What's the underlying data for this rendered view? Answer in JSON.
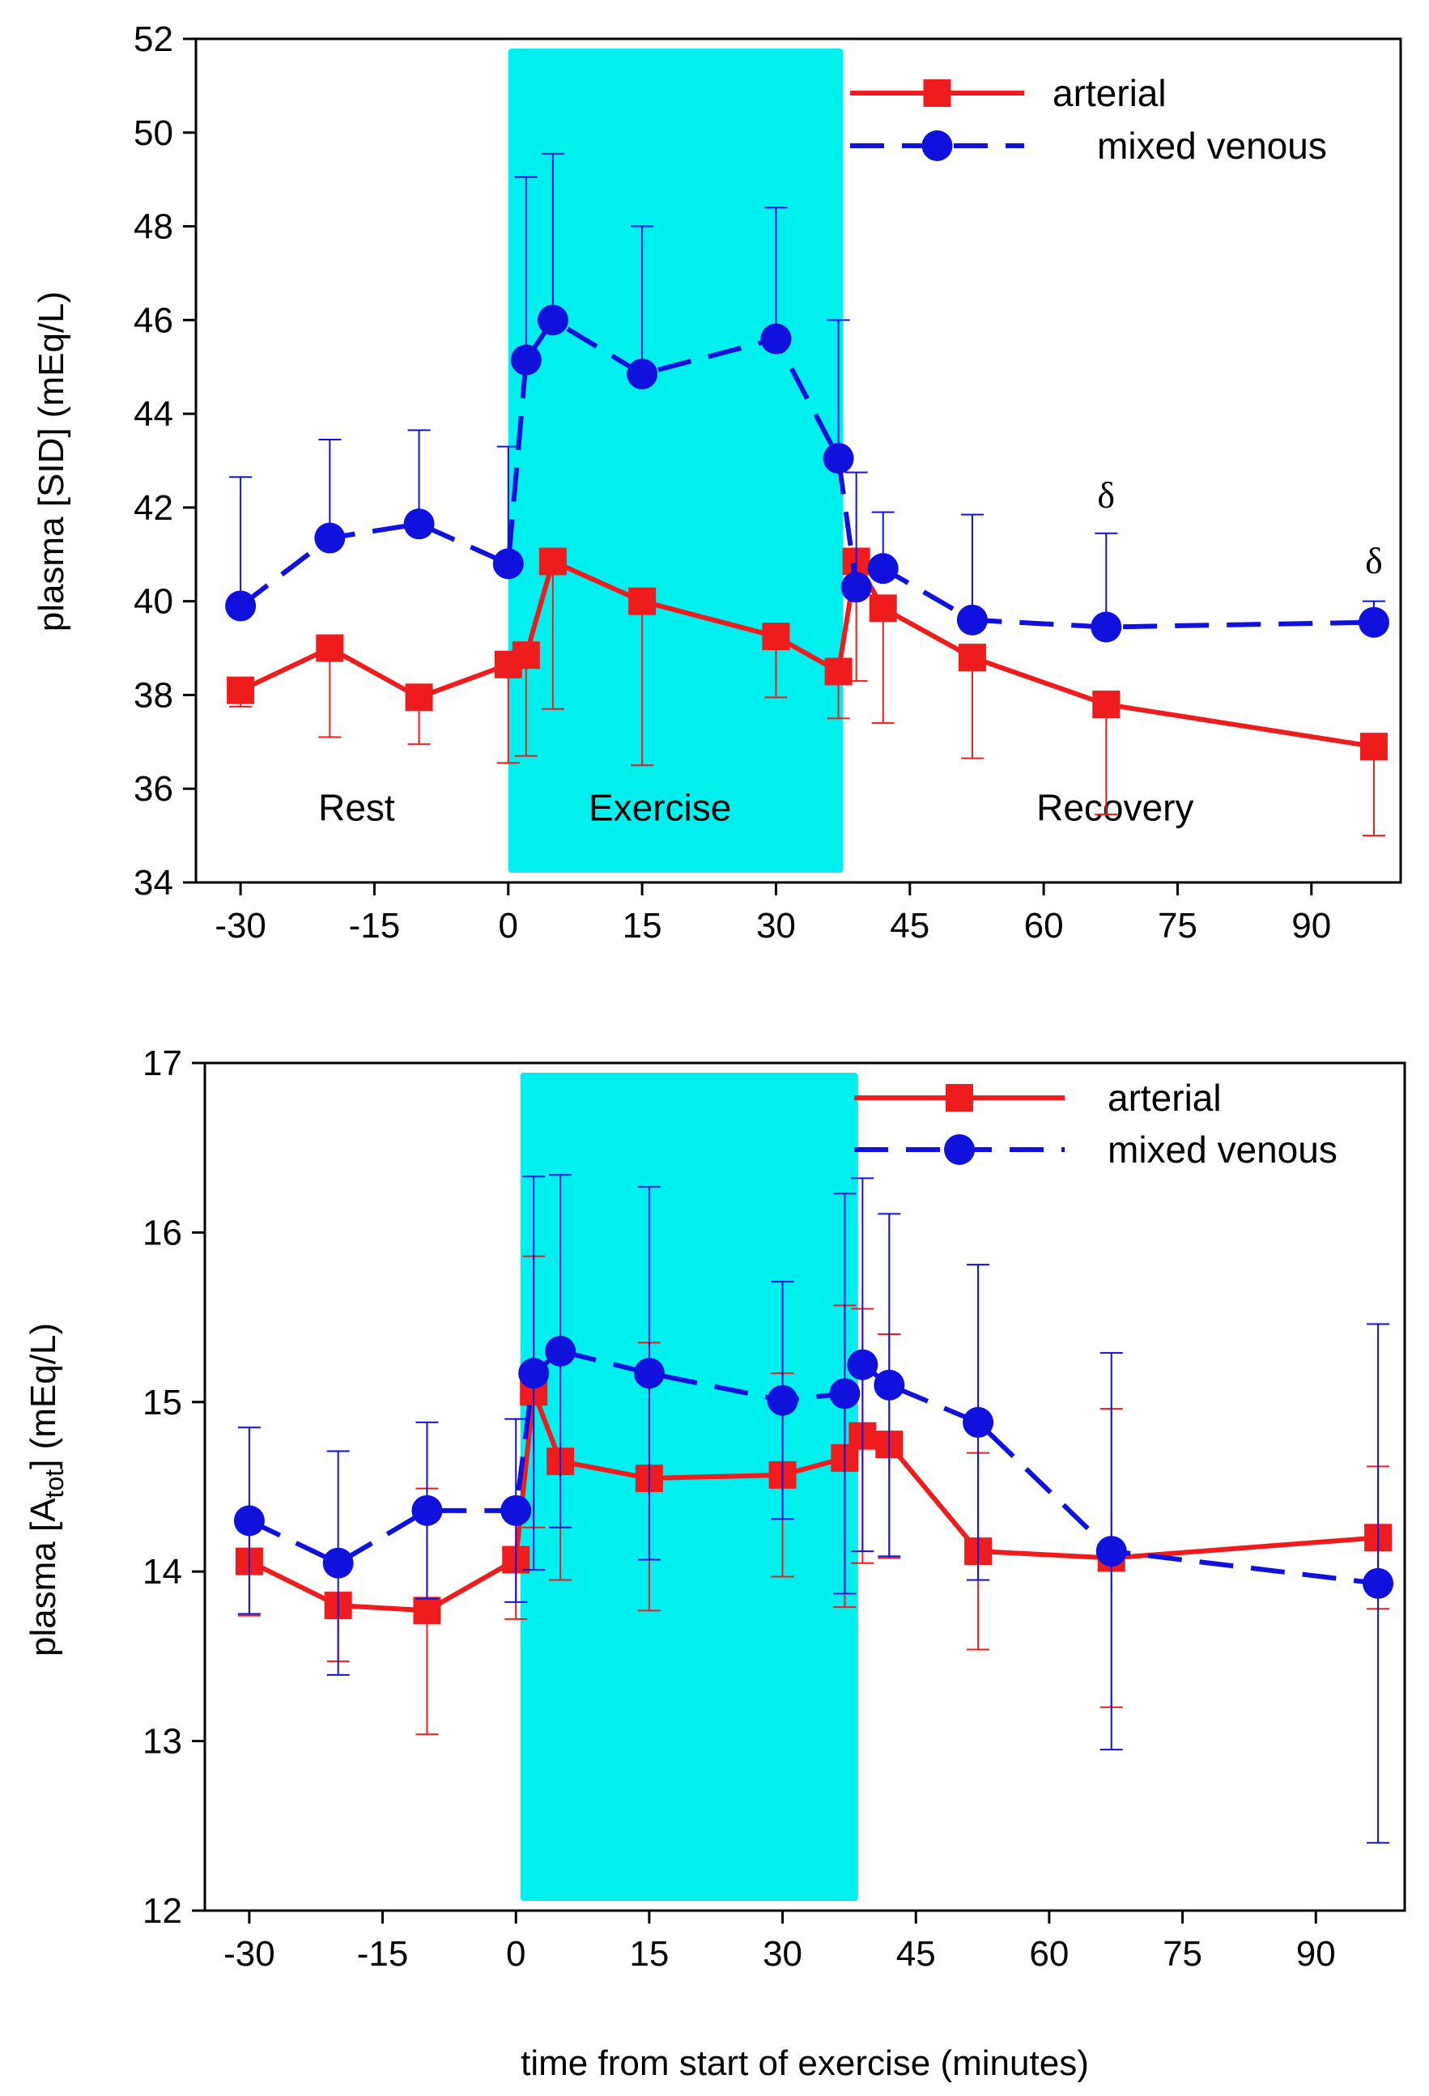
{
  "colors": {
    "arterial": "#ee1c1c",
    "venous": "#1111dd",
    "exercise_band": "#00f0f0",
    "axis": "#000000"
  },
  "chart_data": [
    {
      "id": "sid",
      "type": "line",
      "title": "",
      "xlabel": "",
      "ylabel_parts": [
        "plasma [SID] (mEq/L)"
      ],
      "xlim": [
        -35,
        100
      ],
      "ylim": [
        34,
        52
      ],
      "xticks": [
        -30,
        -15,
        0,
        15,
        30,
        45,
        60,
        75,
        90
      ],
      "yticks": [
        34,
        36,
        38,
        40,
        42,
        44,
        46,
        48,
        50,
        52
      ],
      "grid": false,
      "legend_position": "top-right",
      "shaded_region": {
        "x": [
          0,
          37.5
        ],
        "label": "Exercise"
      },
      "phase_labels": [
        {
          "x": -17,
          "y": 35.6,
          "text": "Rest"
        },
        {
          "x": 17,
          "y": 35.6,
          "text": "Exercise"
        },
        {
          "x": 68,
          "y": 35.6,
          "text": "Recovery"
        }
      ],
      "annotations": [
        {
          "x": 67,
          "y": 42.0,
          "text": "δ"
        },
        {
          "x": 97,
          "y": 40.6,
          "text": "δ"
        }
      ],
      "series": [
        {
          "name": "arterial",
          "marker": "square",
          "dash": "solid",
          "x": [
            -30,
            -20,
            -10,
            0,
            2,
            5,
            15,
            30,
            37,
            39,
            42,
            52,
            67,
            97
          ],
          "y": [
            38.1,
            39.0,
            37.95,
            38.65,
            38.85,
            40.85,
            40.0,
            39.25,
            38.5,
            40.85,
            39.85,
            38.8,
            37.8,
            36.9
          ],
          "err_upper": [
            0,
            0,
            0,
            0,
            0,
            0,
            0,
            0,
            0,
            0,
            0,
            0,
            0,
            0
          ],
          "err_lower": [
            0.35,
            1.9,
            1.0,
            2.1,
            2.15,
            3.15,
            3.5,
            1.3,
            1.0,
            2.55,
            2.45,
            2.15,
            2.35,
            1.9
          ]
        },
        {
          "name": "mixed venous",
          "marker": "circle",
          "dash": "dashed",
          "x": [
            -30,
            -20,
            -10,
            0,
            2,
            5,
            15,
            30,
            37,
            39,
            42,
            52,
            67,
            97
          ],
          "y": [
            39.9,
            41.35,
            41.65,
            40.8,
            45.15,
            46.0,
            44.85,
            45.6,
            43.05,
            40.3,
            40.7,
            39.6,
            39.45,
            39.55
          ],
          "err_upper": [
            2.75,
            2.1,
            2.0,
            2.5,
            3.9,
            3.55,
            3.15,
            2.8,
            2.95,
            2.45,
            1.2,
            2.25,
            2.0,
            0.45
          ],
          "err_lower": [
            0,
            0,
            0,
            0,
            0,
            0,
            0,
            0,
            0,
            0,
            0,
            0,
            0,
            0
          ]
        }
      ]
    },
    {
      "id": "atot",
      "type": "line",
      "title": "",
      "xlabel": "time from start of exercise (minutes)",
      "ylabel_parts": [
        "plasma [A",
        "tot",
        "] (mEq/L)"
      ],
      "xlim": [
        -35,
        100
      ],
      "ylim": [
        12,
        17
      ],
      "xticks": [
        -30,
        -15,
        0,
        15,
        30,
        45,
        60,
        75,
        90
      ],
      "yticks": [
        12,
        13,
        14,
        15,
        16,
        17
      ],
      "grid": false,
      "legend_position": "top-right",
      "shaded_region": {
        "x": [
          0.5,
          38.5
        ],
        "label": ""
      },
      "phase_labels": [],
      "annotations": [],
      "series": [
        {
          "name": "arterial",
          "marker": "square",
          "dash": "solid",
          "x": [
            -30,
            -20,
            -10,
            0,
            2,
            5,
            15,
            30,
            37,
            39,
            42,
            52,
            67,
            97
          ],
          "y": [
            14.06,
            13.8,
            13.77,
            14.07,
            15.06,
            14.65,
            14.55,
            14.57,
            14.67,
            14.8,
            14.75,
            14.12,
            14.08,
            14.2
          ],
          "err_upper": [
            0.3,
            0,
            0.72,
            0,
            0.8,
            0,
            0.8,
            0.6,
            0.9,
            0.75,
            0.65,
            0.58,
            0.88,
            0.42
          ],
          "err_lower": [
            0.32,
            0.33,
            0.73,
            0.35,
            0.8,
            0.7,
            0.78,
            0.6,
            0.88,
            0.75,
            0.67,
            0.58,
            0.88,
            0.42
          ]
        },
        {
          "name": "mixed venous",
          "marker": "circle",
          "dash": "dashed",
          "x": [
            -30,
            -20,
            -10,
            0,
            2,
            5,
            15,
            30,
            37,
            39,
            42,
            52,
            67,
            97
          ],
          "y": [
            14.3,
            14.05,
            14.36,
            14.36,
            15.17,
            15.3,
            15.17,
            15.01,
            15.05,
            15.22,
            15.1,
            14.88,
            14.12,
            13.93
          ],
          "err_upper": [
            0.55,
            0.66,
            0.52,
            0.54,
            1.16,
            1.04,
            1.1,
            0.7,
            1.18,
            1.1,
            1.01,
            0.93,
            1.17,
            1.53
          ],
          "err_lower": [
            0.55,
            0.66,
            0.52,
            0.54,
            1.16,
            1.04,
            1.1,
            0.7,
            1.18,
            1.1,
            1.01,
            0.93,
            1.17,
            1.53
          ]
        }
      ]
    }
  ]
}
